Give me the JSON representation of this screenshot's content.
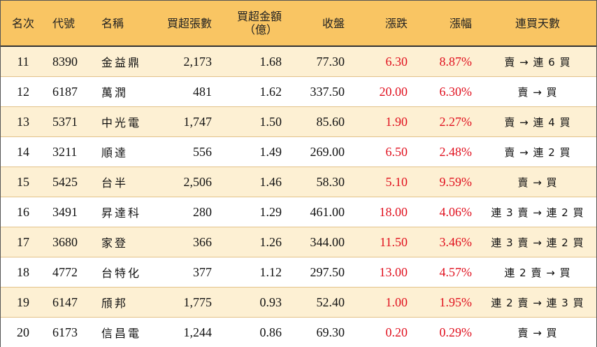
{
  "headers": {
    "rank": "名次",
    "code": "代號",
    "name": "名稱",
    "net_buy_lots": "買超張數",
    "net_buy_amount_line1": "買超金額",
    "net_buy_amount_line2": "（億）",
    "close": "收盤",
    "change": "漲跌",
    "change_pct": "漲幅",
    "consecutive_days": "連買天數"
  },
  "colors": {
    "header_bg": "#f9c563",
    "odd_row_bg": "#fdf0d3",
    "up_red": "#e0101e"
  },
  "rows": [
    {
      "rank": "11",
      "code": "8390",
      "name": "金益鼎",
      "lots": "2,173",
      "amount": "1.68",
      "close": "77.30",
      "change": "6.30",
      "pct": "8.87%",
      "days": "賣 → 連 6 買"
    },
    {
      "rank": "12",
      "code": "6187",
      "name": "萬潤",
      "lots": "481",
      "amount": "1.62",
      "close": "337.50",
      "change": "20.00",
      "pct": "6.30%",
      "days": "賣 → 買"
    },
    {
      "rank": "13",
      "code": "5371",
      "name": "中光電",
      "lots": "1,747",
      "amount": "1.50",
      "close": "85.60",
      "change": "1.90",
      "pct": "2.27%",
      "days": "賣 → 連 4 買"
    },
    {
      "rank": "14",
      "code": "3211",
      "name": "順達",
      "lots": "556",
      "amount": "1.49",
      "close": "269.00",
      "change": "6.50",
      "pct": "2.48%",
      "days": "賣 → 連 2 買"
    },
    {
      "rank": "15",
      "code": "5425",
      "name": "台半",
      "lots": "2,506",
      "amount": "1.46",
      "close": "58.30",
      "change": "5.10",
      "pct": "9.59%",
      "days": "賣 → 買"
    },
    {
      "rank": "16",
      "code": "3491",
      "name": "昇達科",
      "lots": "280",
      "amount": "1.29",
      "close": "461.00",
      "change": "18.00",
      "pct": "4.06%",
      "days": "連 3 賣 → 連 2 買"
    },
    {
      "rank": "17",
      "code": "3680",
      "name": "家登",
      "lots": "366",
      "amount": "1.26",
      "close": "344.00",
      "change": "11.50",
      "pct": "3.46%",
      "days": "連 3 賣 → 連 2 買"
    },
    {
      "rank": "18",
      "code": "4772",
      "name": "台特化",
      "lots": "377",
      "amount": "1.12",
      "close": "297.50",
      "change": "13.00",
      "pct": "4.57%",
      "days": "連 2 賣 → 買"
    },
    {
      "rank": "19",
      "code": "6147",
      "name": "頎邦",
      "lots": "1,775",
      "amount": "0.93",
      "close": "52.40",
      "change": "1.00",
      "pct": "1.95%",
      "days": "連 2 賣 → 連 3 買"
    },
    {
      "rank": "20",
      "code": "6173",
      "name": "信昌電",
      "lots": "1,244",
      "amount": "0.86",
      "close": "69.30",
      "change": "0.20",
      "pct": "0.29%",
      "days": "賣 → 買"
    }
  ]
}
